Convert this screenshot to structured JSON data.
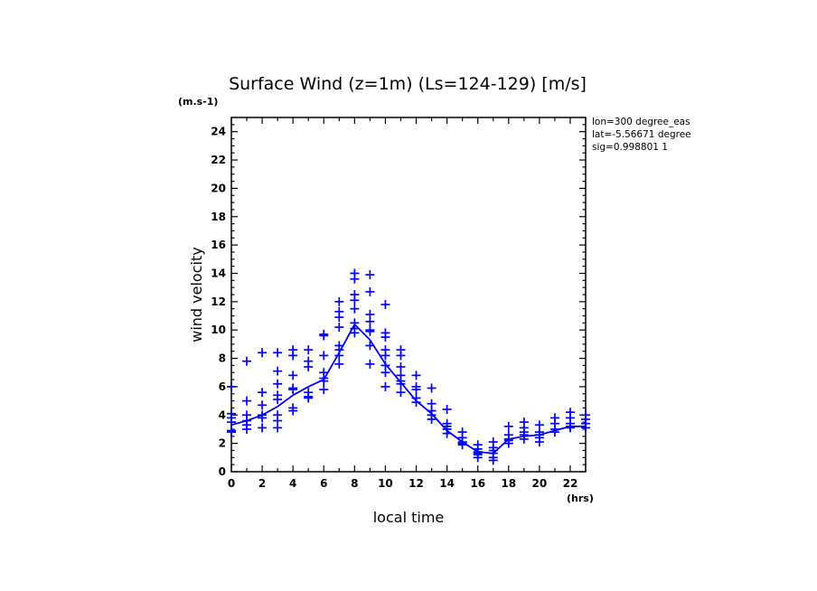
{
  "chart_data": {
    "type": "scatter",
    "title": "Surface Wind (z=1m) (Ls=124-129) [m/s]",
    "units_label": "(m.s-1)",
    "xlabel": "local time",
    "x_units": "(hrs)",
    "ylabel": "wind velocity",
    "xlim": [
      0,
      23
    ],
    "ylim": [
      0,
      25
    ],
    "x_ticks": [
      0,
      2,
      4,
      6,
      8,
      10,
      12,
      14,
      16,
      18,
      20,
      22
    ],
    "y_ticks": [
      0,
      2,
      4,
      6,
      8,
      10,
      12,
      14,
      16,
      18,
      20,
      22,
      24
    ],
    "info": [
      "lon=300 degree_eas",
      "lat=-5.56671 degree",
      "sig=0.998801 1"
    ],
    "color": "#0000ff",
    "series": [
      {
        "name": "mean",
        "kind": "line",
        "x": [
          0,
          1,
          2,
          3,
          4,
          5,
          6,
          7,
          8,
          9,
          10,
          11,
          12,
          13,
          14,
          15,
          16,
          17,
          18,
          19,
          20,
          21,
          22,
          23
        ],
        "y": [
          3.3,
          3.6,
          4.0,
          4.6,
          5.4,
          6.0,
          6.5,
          8.4,
          10.4,
          9.3,
          7.6,
          6.3,
          5.0,
          4.1,
          2.9,
          2.1,
          1.4,
          1.3,
          2.3,
          2.5,
          2.6,
          2.9,
          3.2,
          3.2
        ]
      },
      {
        "name": "samples",
        "kind": "scatter",
        "points": [
          [
            0,
            6.0
          ],
          [
            0,
            4.1
          ],
          [
            0,
            3.8
          ],
          [
            0,
            3.5
          ],
          [
            0,
            2.8
          ],
          [
            0,
            2.9
          ],
          [
            1,
            7.8
          ],
          [
            1,
            5.0
          ],
          [
            1,
            4.0
          ],
          [
            1,
            3.6
          ],
          [
            1,
            3.3
          ],
          [
            1,
            3.0
          ],
          [
            2,
            8.4
          ],
          [
            2,
            5.6
          ],
          [
            2,
            4.7
          ],
          [
            2,
            4.0
          ],
          [
            2,
            3.8
          ],
          [
            2,
            3.1
          ],
          [
            3,
            8.4
          ],
          [
            3,
            7.1
          ],
          [
            3,
            6.2
          ],
          [
            3,
            5.4
          ],
          [
            3,
            5.1
          ],
          [
            3,
            4.0
          ],
          [
            3,
            3.6
          ],
          [
            3,
            3.1
          ],
          [
            4,
            8.6
          ],
          [
            4,
            8.2
          ],
          [
            4,
            6.8
          ],
          [
            4,
            5.9
          ],
          [
            4,
            5.8
          ],
          [
            4,
            4.5
          ],
          [
            4,
            4.3
          ],
          [
            5,
            8.6
          ],
          [
            5,
            7.8
          ],
          [
            5,
            7.4
          ],
          [
            5,
            5.6
          ],
          [
            5,
            5.3
          ],
          [
            5,
            5.2
          ],
          [
            6,
            9.7
          ],
          [
            6,
            9.6
          ],
          [
            6,
            8.2
          ],
          [
            6,
            7.0
          ],
          [
            6,
            6.6
          ],
          [
            6,
            6.4
          ],
          [
            6,
            5.8
          ],
          [
            7,
            12.0
          ],
          [
            7,
            11.3
          ],
          [
            7,
            10.9
          ],
          [
            7,
            10.2
          ],
          [
            7,
            8.9
          ],
          [
            7,
            8.6
          ],
          [
            7,
            8.2
          ],
          [
            7,
            7.6
          ],
          [
            8,
            14.0
          ],
          [
            8,
            13.6
          ],
          [
            8,
            12.5
          ],
          [
            8,
            12.1
          ],
          [
            8,
            11.5
          ],
          [
            8,
            10.5
          ],
          [
            8,
            10.1
          ],
          [
            8,
            9.8
          ],
          [
            9,
            13.9
          ],
          [
            9,
            12.7
          ],
          [
            9,
            11.1
          ],
          [
            9,
            10.6
          ],
          [
            9,
            10.0
          ],
          [
            9,
            9.9
          ],
          [
            9,
            8.9
          ],
          [
            9,
            7.6
          ],
          [
            10,
            11.8
          ],
          [
            10,
            9.8
          ],
          [
            10,
            9.5
          ],
          [
            10,
            8.6
          ],
          [
            10,
            8.2
          ],
          [
            10,
            7.5
          ],
          [
            10,
            7.0
          ],
          [
            10,
            6.0
          ],
          [
            11,
            8.6
          ],
          [
            11,
            8.2
          ],
          [
            11,
            7.4
          ],
          [
            11,
            6.8
          ],
          [
            11,
            6.4
          ],
          [
            11,
            6.2
          ],
          [
            11,
            5.6
          ],
          [
            12,
            6.8
          ],
          [
            12,
            6.0
          ],
          [
            12,
            5.8
          ],
          [
            12,
            5.2
          ],
          [
            12,
            4.9
          ],
          [
            13,
            5.9
          ],
          [
            13,
            4.8
          ],
          [
            13,
            4.3
          ],
          [
            13,
            4.0
          ],
          [
            13,
            3.7
          ],
          [
            14,
            4.4
          ],
          [
            14,
            3.4
          ],
          [
            14,
            3.2
          ],
          [
            14,
            3.0
          ],
          [
            14,
            2.7
          ],
          [
            15,
            2.8
          ],
          [
            15,
            2.4
          ],
          [
            15,
            2.1
          ],
          [
            15,
            2.0
          ],
          [
            15,
            1.9
          ],
          [
            16,
            1.9
          ],
          [
            16,
            1.6
          ],
          [
            16,
            1.4
          ],
          [
            16,
            1.3
          ],
          [
            16,
            1.2
          ],
          [
            16,
            1.0
          ],
          [
            17,
            2.1
          ],
          [
            17,
            1.7
          ],
          [
            17,
            1.5
          ],
          [
            17,
            1.3
          ],
          [
            17,
            1.0
          ],
          [
            17,
            0.8
          ],
          [
            18,
            3.2
          ],
          [
            18,
            2.6
          ],
          [
            18,
            2.3
          ],
          [
            18,
            2.2
          ],
          [
            18,
            2.0
          ],
          [
            19,
            3.5
          ],
          [
            19,
            3.1
          ],
          [
            19,
            2.8
          ],
          [
            19,
            2.6
          ],
          [
            19,
            2.3
          ],
          [
            20,
            3.3
          ],
          [
            20,
            2.8
          ],
          [
            20,
            2.6
          ],
          [
            20,
            2.4
          ],
          [
            20,
            2.1
          ],
          [
            21,
            3.8
          ],
          [
            21,
            3.4
          ],
          [
            21,
            3.0
          ],
          [
            21,
            2.8
          ],
          [
            22,
            4.2
          ],
          [
            22,
            3.8
          ],
          [
            22,
            3.4
          ],
          [
            22,
            3.2
          ],
          [
            22,
            3.1
          ],
          [
            23,
            4.0
          ],
          [
            23,
            3.7
          ],
          [
            23,
            3.4
          ],
          [
            23,
            3.1
          ]
        ]
      }
    ]
  }
}
